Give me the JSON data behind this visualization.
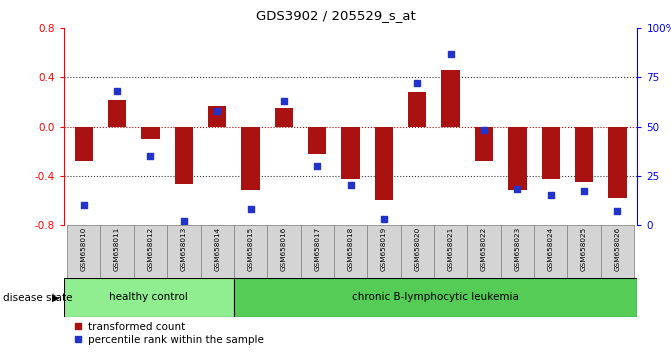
{
  "title": "GDS3902 / 205529_s_at",
  "samples": [
    "GSM658010",
    "GSM658011",
    "GSM658012",
    "GSM658013",
    "GSM658014",
    "GSM658015",
    "GSM658016",
    "GSM658017",
    "GSM658018",
    "GSM658019",
    "GSM658020",
    "GSM658021",
    "GSM658022",
    "GSM658023",
    "GSM658024",
    "GSM658025",
    "GSM658026"
  ],
  "red_bars": [
    -0.28,
    0.22,
    -0.1,
    -0.47,
    0.17,
    -0.52,
    0.15,
    -0.22,
    -0.43,
    -0.6,
    0.28,
    0.46,
    -0.28,
    -0.52,
    -0.43,
    -0.45,
    -0.58
  ],
  "blue_dots_pct": [
    10,
    68,
    35,
    2,
    58,
    8,
    63,
    30,
    20,
    3,
    72,
    87,
    48,
    18,
    15,
    17,
    7
  ],
  "healthy_count": 5,
  "ylim": [
    -0.8,
    0.8
  ],
  "yticks_left": [
    -0.8,
    -0.4,
    0.0,
    0.4,
    0.8
  ],
  "yticks_right": [
    0,
    25,
    50,
    75,
    100
  ],
  "bar_color": "#aa1111",
  "dot_color": "#2233cc",
  "healthy_color": "#90ee90",
  "leukemia_color": "#55cc55",
  "group_label_healthy": "healthy control",
  "group_label_leukemia": "chronic B-lymphocytic leukemia",
  "disease_state_label": "disease state",
  "legend_bar": "transformed count",
  "legend_dot": "percentile rank within the sample",
  "bg_color": "#ffffff",
  "plot_bg": "#ffffff"
}
